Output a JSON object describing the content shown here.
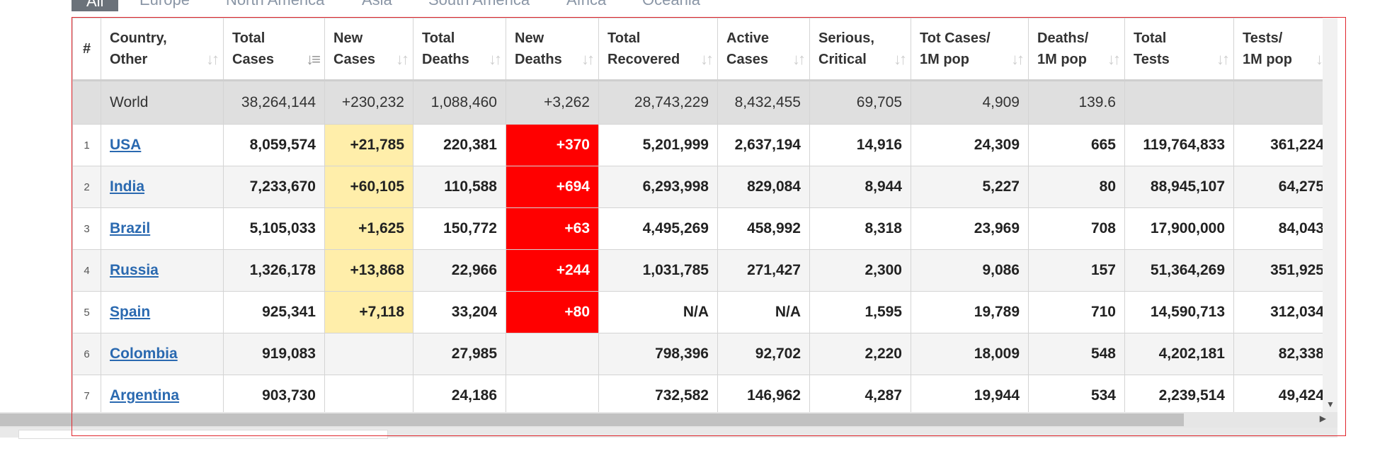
{
  "tabs": [
    "All",
    "Europe",
    "North America",
    "Asia",
    "South America",
    "Africa",
    "Oceania"
  ],
  "columns": [
    {
      "l1": "#",
      "l2": ""
    },
    {
      "l1": "Country,",
      "l2": "Other"
    },
    {
      "l1": "Total",
      "l2": "Cases"
    },
    {
      "l1": "New",
      "l2": "Cases"
    },
    {
      "l1": "Total",
      "l2": "Deaths"
    },
    {
      "l1": "New",
      "l2": "Deaths"
    },
    {
      "l1": "Total",
      "l2": "Recovered"
    },
    {
      "l1": "Active",
      "l2": "Cases"
    },
    {
      "l1": "Serious,",
      "l2": "Critical"
    },
    {
      "l1": "Tot Cases/",
      "l2": "1M pop"
    },
    {
      "l1": "Deaths/",
      "l2": "1M pop"
    },
    {
      "l1": "Total",
      "l2": "Tests"
    },
    {
      "l1": "Tests/",
      "l2": "1M pop"
    }
  ],
  "world": {
    "country": "World",
    "total_cases": "38,264,144",
    "new_cases": "+230,232",
    "total_deaths": "1,088,460",
    "new_deaths": "+3,262",
    "total_recovered": "28,743,229",
    "active_cases": "8,432,455",
    "serious": "69,705",
    "cases_per_m": "4,909",
    "deaths_per_m": "139.6",
    "total_tests": "",
    "tests_per_m": ""
  },
  "rows": [
    {
      "rank": "1",
      "country": "USA",
      "total_cases": "8,059,574",
      "new_cases": "+21,785",
      "total_deaths": "220,381",
      "new_deaths": "+370",
      "total_recovered": "5,201,999",
      "active_cases": "2,637,194",
      "serious": "14,916",
      "cases_per_m": "24,309",
      "deaths_per_m": "665",
      "total_tests": "119,764,833",
      "tests_per_m": "361,224"
    },
    {
      "rank": "2",
      "country": "India",
      "total_cases": "7,233,670",
      "new_cases": "+60,105",
      "total_deaths": "110,588",
      "new_deaths": "+694",
      "total_recovered": "6,293,998",
      "active_cases": "829,084",
      "serious": "8,944",
      "cases_per_m": "5,227",
      "deaths_per_m": "80",
      "total_tests": "88,945,107",
      "tests_per_m": "64,275"
    },
    {
      "rank": "3",
      "country": "Brazil",
      "total_cases": "5,105,033",
      "new_cases": "+1,625",
      "total_deaths": "150,772",
      "new_deaths": "+63",
      "total_recovered": "4,495,269",
      "active_cases": "458,992",
      "serious": "8,318",
      "cases_per_m": "23,969",
      "deaths_per_m": "708",
      "total_tests": "17,900,000",
      "tests_per_m": "84,043"
    },
    {
      "rank": "4",
      "country": "Russia",
      "total_cases": "1,326,178",
      "new_cases": "+13,868",
      "total_deaths": "22,966",
      "new_deaths": "+244",
      "total_recovered": "1,031,785",
      "active_cases": "271,427",
      "serious": "2,300",
      "cases_per_m": "9,086",
      "deaths_per_m": "157",
      "total_tests": "51,364,269",
      "tests_per_m": "351,925"
    },
    {
      "rank": "5",
      "country": "Spain",
      "total_cases": "925,341",
      "new_cases": "+7,118",
      "total_deaths": "33,204",
      "new_deaths": "+80",
      "total_recovered": "N/A",
      "active_cases": "N/A",
      "serious": "1,595",
      "cases_per_m": "19,789",
      "deaths_per_m": "710",
      "total_tests": "14,590,713",
      "tests_per_m": "312,034"
    },
    {
      "rank": "6",
      "country": "Colombia",
      "total_cases": "919,083",
      "new_cases": "",
      "total_deaths": "27,985",
      "new_deaths": "",
      "total_recovered": "798,396",
      "active_cases": "92,702",
      "serious": "2,220",
      "cases_per_m": "18,009",
      "deaths_per_m": "548",
      "total_tests": "4,202,181",
      "tests_per_m": "82,338"
    },
    {
      "rank": "7",
      "country": "Argentina",
      "total_cases": "903,730",
      "new_cases": "",
      "total_deaths": "24,186",
      "new_deaths": "",
      "total_recovered": "732,582",
      "active_cases": "146,962",
      "serious": "4,287",
      "cases_per_m": "19,944",
      "deaths_per_m": "534",
      "total_tests": "2,239,514",
      "tests_per_m": "49,424"
    }
  ],
  "colors": {
    "new_cases_highlight": "#ffeeaa",
    "new_deaths_highlight": "#ff0000",
    "world_row": "#dfdfdf",
    "link": "#2a69b0",
    "selection_outline": "#e0262d"
  },
  "icons": {
    "sort": "sort-arrows-icon",
    "sort_active": "sort-descending-icon",
    "scroll_down": "scroll-down-arrow-icon",
    "scroll_right": "scroll-right-arrow-icon"
  }
}
